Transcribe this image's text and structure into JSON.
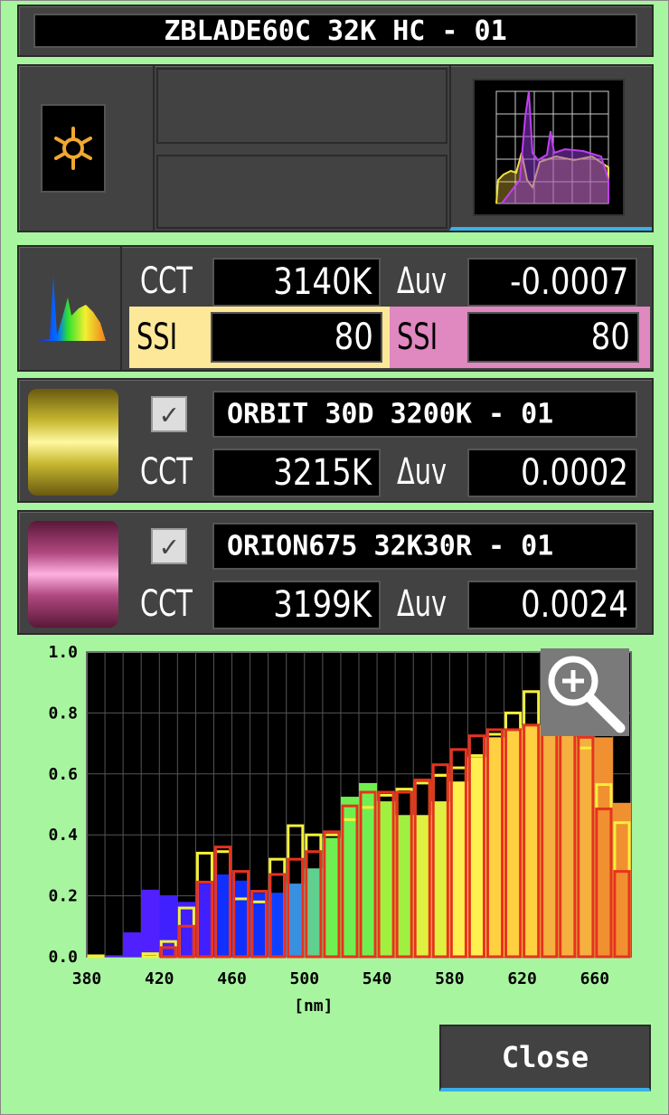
{
  "title": "ZBLADE60C 32K HC - 01",
  "icons": {
    "light": "sun-icon",
    "spectrum_thumb": "spectrum-overlay-thumbnail",
    "spectrum": "spectrum-icon",
    "zoom": "magnifier-plus-icon"
  },
  "measured": {
    "cct_label": "CCT",
    "cct": "3140K",
    "duv_label": "Δuv",
    "duv": "-0.0007",
    "ssi1_label": "SSI",
    "ssi1": "80",
    "ssi2_label": "SSI",
    "ssi2": "80"
  },
  "ref1": {
    "checked": true,
    "name": "ORBIT 30D 3200K - 01",
    "cct_label": "CCT",
    "cct": "3215K",
    "duv_label": "Δuv",
    "duv": "0.0002"
  },
  "ref2": {
    "checked": true,
    "name": "ORION675 32K30R - 01",
    "cct_label": "CCT",
    "cct": "3199K",
    "duv_label": "Δuv",
    "duv": "0.0024"
  },
  "colors": {
    "background": "#a8f5a0",
    "ssi1": "#fde89a",
    "ssi2": "#e088c0",
    "ref1_outline": "#f5f03a",
    "ref2_outline": "#e8321e"
  },
  "chart_data": {
    "type": "bar",
    "xlabel": "[nm]",
    "xlim": [
      380,
      680
    ],
    "ylim": [
      0,
      1
    ],
    "x_ticks": [
      "380",
      "420",
      "460",
      "500",
      "540",
      "580",
      "620",
      "660"
    ],
    "y_ticks": [
      "0.0",
      "0.2",
      "0.4",
      "0.6",
      "0.8",
      "1.0"
    ],
    "x": [
      380,
      390,
      400,
      410,
      420,
      430,
      440,
      450,
      460,
      470,
      480,
      490,
      500,
      510,
      520,
      530,
      540,
      550,
      560,
      570,
      580,
      590,
      600,
      610,
      620,
      630,
      640,
      650,
      660,
      670
    ],
    "series": [
      {
        "style": "filled",
        "values": [
          0,
          0.005,
          0.08,
          0.22,
          0.2,
          0.18,
          0.24,
          0.27,
          0.25,
          0.21,
          0.21,
          0.24,
          0.29,
          0.39,
          0.525,
          0.57,
          0.51,
          0.465,
          0.465,
          0.51,
          0.575,
          0.655,
          0.72,
          0.745,
          0.76,
          0.76,
          0.74,
          0.72,
          0.72,
          0.505
        ]
      },
      {
        "style": "outline",
        "color": "#f5f03a",
        "values": [
          0.003,
          0,
          0,
          0.01,
          0.05,
          0.16,
          0.34,
          0.345,
          0.19,
          0.18,
          0.32,
          0.43,
          0.4,
          0.4,
          0.45,
          0.49,
          0.53,
          0.55,
          0.57,
          0.595,
          0.62,
          0.66,
          0.73,
          0.8,
          0.87,
          0.8,
          0.76,
          0.685,
          0.565,
          0.44
        ]
      },
      {
        "style": "outline",
        "color": "#e8321e",
        "values": [
          0,
          0,
          0,
          0,
          0.03,
          0.1,
          0.245,
          0.36,
          0.28,
          0.215,
          0.27,
          0.32,
          0.345,
          0.41,
          0.495,
          0.54,
          0.54,
          0.54,
          0.58,
          0.63,
          0.68,
          0.725,
          0.745,
          0.745,
          0.76,
          0.76,
          0.74,
          0.72,
          0.485,
          0.28
        ]
      }
    ]
  },
  "close_label": "Close"
}
